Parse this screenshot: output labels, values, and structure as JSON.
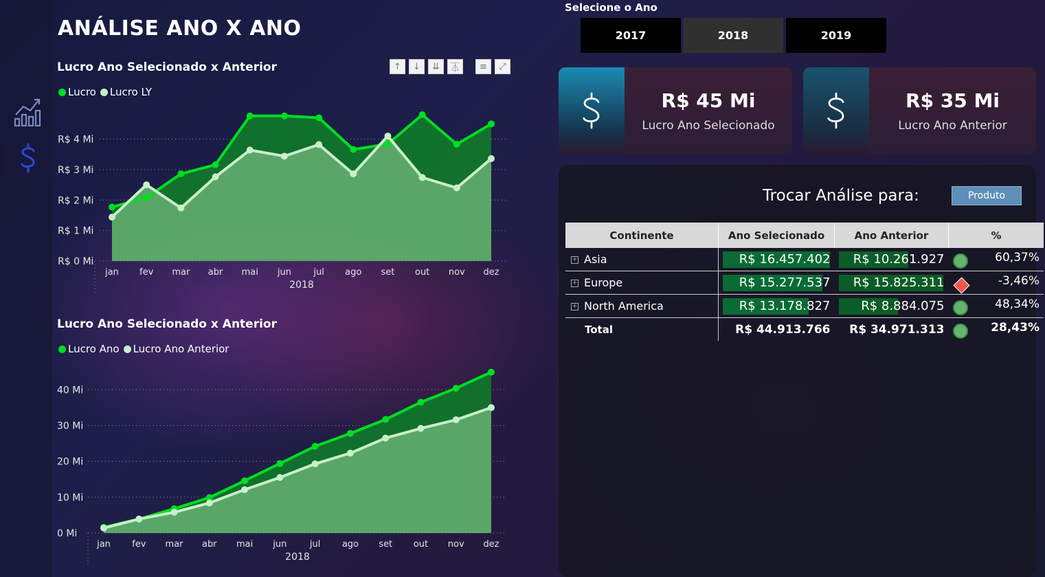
{
  "page": {
    "title": "ANÁLISE ANO X ANO"
  },
  "colors": {
    "lucro": "#00dd22",
    "lucro_ly": "#c8f0c8",
    "area_selected": "#0f7a2a",
    "area_prev": "#5fa96c",
    "kpi_icon_bg": "#1b8ab3",
    "positive": "#63b46f",
    "negative": "#f2564e"
  },
  "sidebar": {
    "items": [
      {
        "icon": "line-chart-icon",
        "active": false
      },
      {
        "icon": "dollar-icon",
        "active": true
      }
    ]
  },
  "chart1": {
    "title": "Lucro Ano Selecionado x Anterior",
    "legend": [
      "Lucro",
      "Lucro  LY"
    ],
    "toolbar": [
      "↑",
      "↓",
      "⇊",
      "⏄",
      "≡",
      "⤢"
    ]
  },
  "chart2": {
    "title": "Lucro Ano Selecionado x Anterior",
    "legend": [
      "Lucro Ano",
      "Lucro Ano Anterior"
    ]
  },
  "slicer": {
    "title": "Selecione o Ano",
    "years": [
      "2017",
      "2018",
      "2019"
    ],
    "selected": "2018"
  },
  "kpis": [
    {
      "value": "R$ 45 Mi",
      "label": "Lucro Ano Selecionado",
      "icon": "dollar-icon"
    },
    {
      "value": "R$ 35 Mi",
      "label": "Lucro  Ano Anterior",
      "icon": "dollar-icon"
    }
  ],
  "analysis": {
    "label": "Trocar Análise para:",
    "button": "Produto"
  },
  "table": {
    "headers": [
      "Continente",
      "Ano Selecionado",
      "Ano Anterior",
      "%"
    ],
    "rows": [
      {
        "name": "Asia",
        "selected": "R$ 16.457.402",
        "previous": "R$ 10.261.927",
        "pct": "60,37%",
        "status": "up",
        "sel_fraction": 1.0,
        "prev_fraction": 0.63
      },
      {
        "name": "Europe",
        "selected": "R$ 15.277.537",
        "previous": "R$ 15.825.311",
        "pct": "-3,46%",
        "status": "down",
        "sel_fraction": 0.93,
        "prev_fraction": 0.97
      },
      {
        "name": "North America",
        "selected": "R$ 13.178.827",
        "previous": "R$ 8.884.075",
        "pct": "48,34%",
        "status": "up",
        "sel_fraction": 0.8,
        "prev_fraction": 0.55
      }
    ],
    "total": {
      "name": "Total",
      "selected": "R$ 44.913.766",
      "previous": "R$ 34.971.313",
      "pct": "28,43%",
      "status": "up"
    }
  },
  "chart_data": [
    {
      "type": "area",
      "title": "Lucro Ano Selecionado x Anterior",
      "categories": [
        "jan",
        "fev",
        "mar",
        "abr",
        "mai",
        "jun",
        "jul",
        "ago",
        "set",
        "out",
        "nov",
        "dez"
      ],
      "xlabel": "2018",
      "y_ticks": [
        "R$ 0 Mi",
        "R$ 1 Mi",
        "R$ 2 Mi",
        "R$ 3 Mi",
        "R$ 4 Mi"
      ],
      "y_tick_values": [
        0,
        1,
        2,
        3,
        4
      ],
      "ylim": [
        0,
        4.8
      ],
      "grid": true,
      "legend_position": "top-left",
      "series": [
        {
          "name": "Lucro",
          "values": [
            1.77,
            2.08,
            2.86,
            3.16,
            4.76,
            4.76,
            4.7,
            3.66,
            3.84,
            4.8,
            3.83,
            4.5
          ]
        },
        {
          "name": "Lucro  LY",
          "values": [
            1.44,
            2.5,
            1.74,
            2.76,
            3.64,
            3.44,
            3.82,
            2.86,
            4.1,
            2.74,
            2.4,
            3.36
          ]
        }
      ]
    },
    {
      "type": "area",
      "title": "Lucro Ano Selecionado x Anterior",
      "categories": [
        "jan",
        "fev",
        "mar",
        "abr",
        "mai",
        "jun",
        "jul",
        "ago",
        "set",
        "out",
        "nov",
        "dez"
      ],
      "xlabel": "2018",
      "y_ticks": [
        "0 Mi",
        "10 Mi",
        "20 Mi",
        "30 Mi",
        "40 Mi"
      ],
      "y_tick_values": [
        0,
        10,
        20,
        30,
        40
      ],
      "ylim": [
        0,
        46
      ],
      "grid": true,
      "legend_position": "top-left",
      "series": [
        {
          "name": "Lucro Ano",
          "values": [
            1.6,
            3.9,
            6.8,
            9.9,
            14.6,
            19.4,
            24.2,
            27.8,
            31.7,
            36.5,
            40.4,
            44.9
          ]
        },
        {
          "name": "Lucro Ano Anterior",
          "values": [
            1.4,
            3.9,
            5.8,
            8.4,
            12.1,
            15.5,
            19.3,
            22.3,
            26.5,
            29.2,
            31.6,
            35.0
          ]
        }
      ]
    }
  ]
}
